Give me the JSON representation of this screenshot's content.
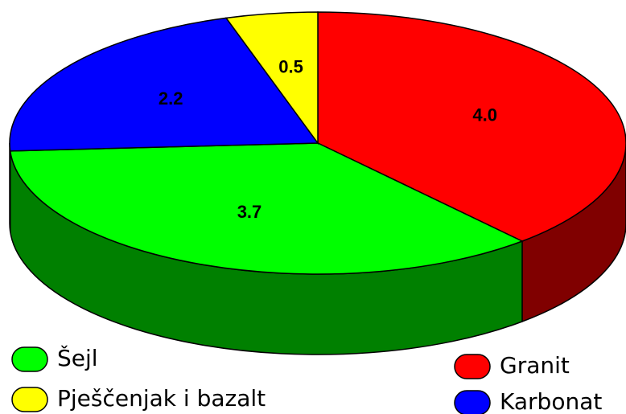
{
  "chart_data": {
    "type": "pie",
    "series": [
      {
        "name": "Granit",
        "color": "#ff0000",
        "values": [
          4.0
        ],
        "value_labels": [
          "4.0"
        ]
      },
      {
        "name": "Šejl",
        "color": "#00ff00",
        "values": [
          3.7
        ],
        "value_labels": [
          "3.7"
        ]
      },
      {
        "name": "Karbonat",
        "color": "#0000ff",
        "values": [
          2.2
        ],
        "value_labels": [
          "2.2"
        ]
      },
      {
        "name": "Pješčenjak i bazalt",
        "color": "#ffff00",
        "values": [
          0.5
        ],
        "value_labels": [
          "0.5"
        ]
      }
    ]
  }
}
